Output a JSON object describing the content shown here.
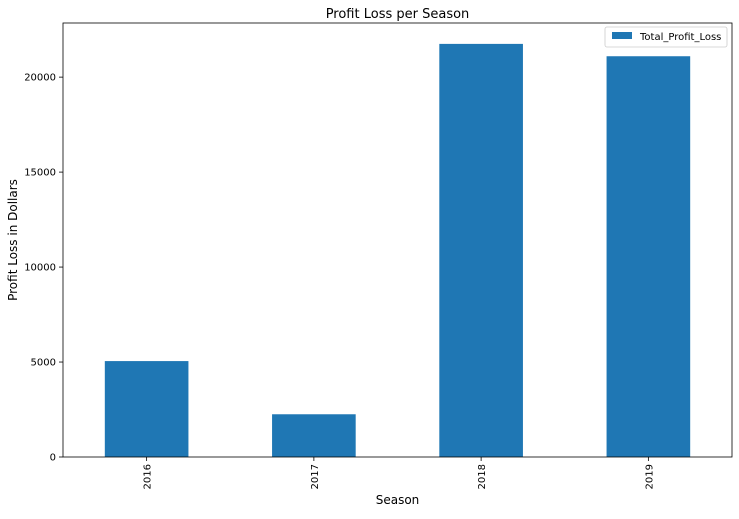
{
  "chart_data": {
    "type": "bar",
    "title": "Profit Loss per Season",
    "xlabel": "Season",
    "ylabel": "Profit Loss in Dollars",
    "categories": [
      "2016",
      "2017",
      "2018",
      "2019"
    ],
    "series": [
      {
        "name": "Total_Profit_Loss",
        "values": [
          5050,
          2250,
          21750,
          21100
        ],
        "color": "#1f77b4"
      }
    ],
    "yticks": [
      0,
      5000,
      10000,
      15000,
      20000
    ],
    "ylim": [
      0,
      22850
    ],
    "grid": false,
    "legend": {
      "position": "top-right"
    }
  }
}
